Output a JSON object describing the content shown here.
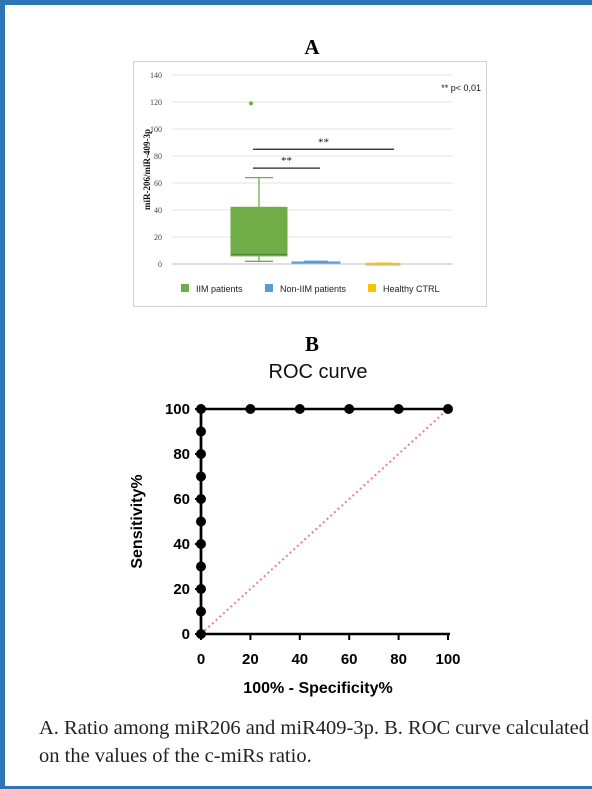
{
  "chart_data": [
    {
      "type": "box",
      "panel_label": "A",
      "ylabel": "miR-206/miR-409-3p",
      "ylim": [
        0,
        140
      ],
      "yticks": [
        0,
        20,
        40,
        60,
        80,
        100,
        120,
        140
      ],
      "grid": true,
      "annotation": "** p< 0,01",
      "legend_position": "bottom",
      "categories": [
        "IIM patients",
        "Non-IIM patients",
        "Healthy CTRL"
      ],
      "colors": [
        "#70ad47",
        "#5b9bd5",
        "#ffc000"
      ],
      "boxes": [
        {
          "name": "IIM patients",
          "min": 2,
          "q1": 6,
          "median": 7,
          "q3": 42,
          "max": 64,
          "outliers": [
            119
          ]
        },
        {
          "name": "Non-IIM patients",
          "min": 0.5,
          "q1": 0.7,
          "median": 1,
          "q3": 1.5,
          "max": 2,
          "outliers": []
        },
        {
          "name": "Healthy CTRL",
          "min": 0,
          "q1": 0.1,
          "median": 0.3,
          "q3": 0.5,
          "max": 0.6,
          "outliers": []
        }
      ],
      "brackets": [
        {
          "from": "IIM patients",
          "to": "Non-IIM patients",
          "y": 71,
          "label": "**"
        },
        {
          "from": "IIM patients",
          "to": "Healthy CTRL",
          "y": 85,
          "label": "**"
        }
      ]
    },
    {
      "type": "line",
      "panel_label": "B",
      "title": "ROC curve",
      "xlabel": "100% - Specificity%",
      "ylabel": "Sensitivity%",
      "xlim": [
        0,
        100
      ],
      "ylim": [
        0,
        100
      ],
      "xticks": [
        0,
        20,
        40,
        60,
        80,
        100
      ],
      "yticks": [
        0,
        20,
        40,
        60,
        80,
        100
      ],
      "series": [
        {
          "x": [
            0,
            0,
            0,
            0,
            0,
            0,
            0,
            0,
            0,
            0,
            0,
            20,
            40,
            60,
            80,
            100
          ],
          "y": [
            0,
            10,
            20,
            30,
            40,
            50,
            60,
            70,
            80,
            90,
            100,
            100,
            100,
            100,
            100,
            100
          ],
          "color": "#000000"
        }
      ],
      "reference_line": {
        "x": [
          0,
          100
        ],
        "y": [
          0,
          100
        ],
        "color": "#f08080",
        "style": "dotted"
      }
    }
  ],
  "caption": "A. Ratio among miR206 and miR409-3p. B. ROC curve calculated on the values of the c-miRs ratio."
}
